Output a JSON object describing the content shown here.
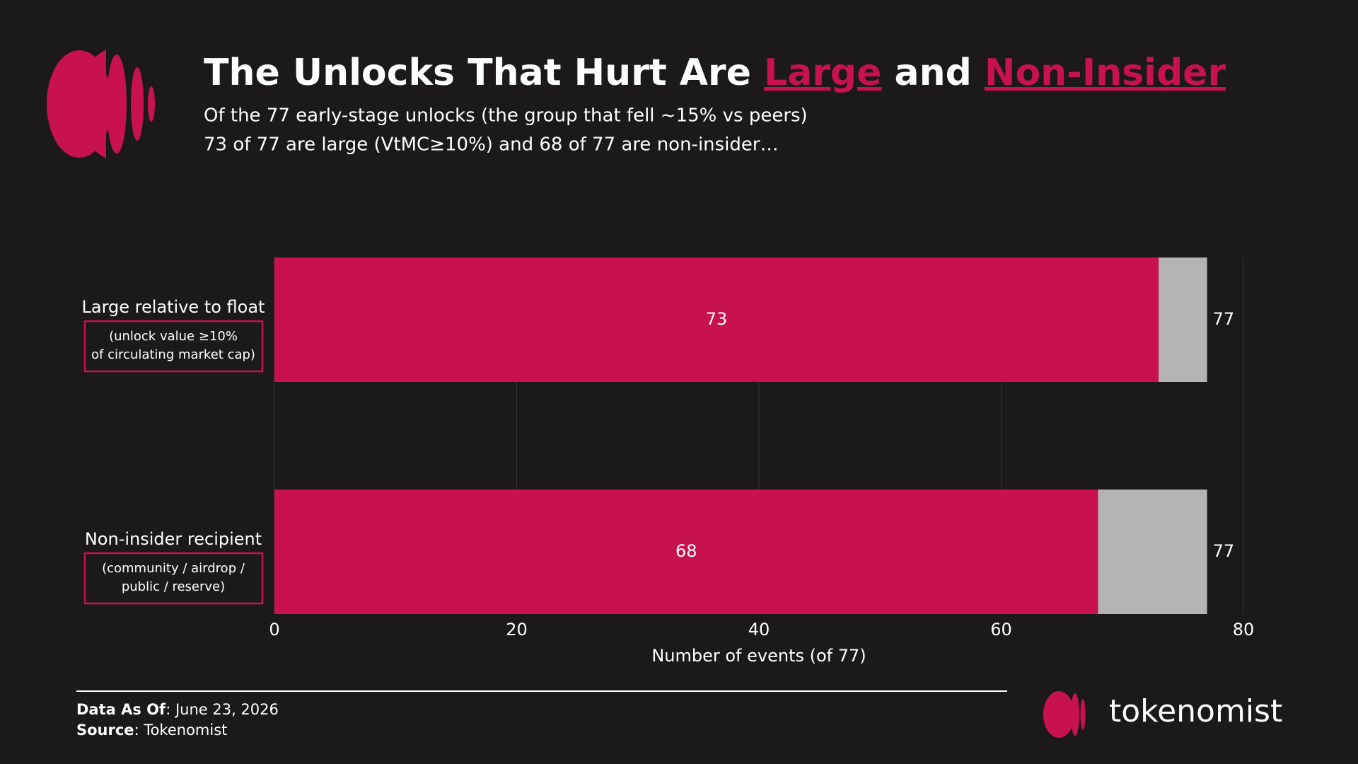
{
  "chart_data": {
    "type": "stacked_barh",
    "title_parts": [
      "The Unlocks That Hurt Are ",
      "Large",
      " and ",
      "Non-Insider"
    ],
    "subtitle": [
      "Of the 77 early-stage unlocks (the group that fell ~15% vs peers)",
      "73 of 77 are large (VtMC≥10%) and 68 of 77 are non-insider…"
    ],
    "categories": [
      "Large relative to float",
      "Non-insider recipient"
    ],
    "category_notes": [
      [
        "(unlock value ≥10%",
        "of circulating market cap)"
      ],
      [
        "(community / airdrop /",
        "public / reserve)"
      ]
    ],
    "series": [
      {
        "color": "#c8124f",
        "values": [
          73,
          68
        ]
      },
      {
        "color": "#b4b4b4",
        "values": [
          4,
          9
        ]
      }
    ],
    "totals": [
      77,
      77
    ],
    "xlim": [
      0,
      80
    ],
    "xticks": [
      0,
      20,
      40,
      60,
      80
    ],
    "grid": true,
    "xlabel": "Number of events (of 77)",
    "footer": {
      "date_label": "Data As Of",
      "date": ": June 23, 2026",
      "source_label": "Source",
      "source": ": Tokenomist"
    },
    "brand": "tokenomist"
  }
}
